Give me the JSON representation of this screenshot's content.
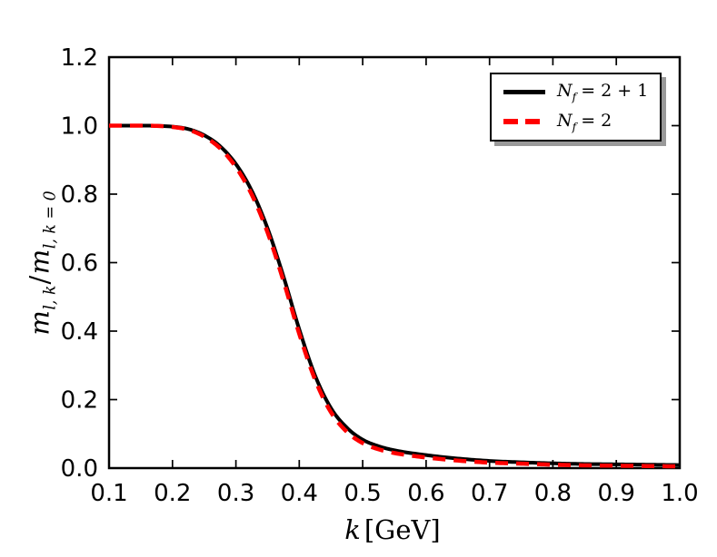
{
  "figure": {
    "background": "#ffffff",
    "axes_color": "#000000",
    "ylabel": {
      "m1": "m",
      "s1": "l, k",
      "slash": "/",
      "m2": "m",
      "s2": "l, k = 0"
    },
    "xlabel": {
      "var": "k",
      "unit": "[GeV]"
    },
    "legend": {
      "shadow_color": "#999999",
      "entries": [
        {
          "base": "N",
          "sub": "f",
          "eq": "= 2 + 1",
          "color": "#000000",
          "line_style": "solid"
        },
        {
          "base": "N",
          "sub": "f",
          "eq": "= 2",
          "color": "#ff0000",
          "line_style": "dashed"
        }
      ]
    }
  },
  "chart_data": {
    "type": "line",
    "title": "",
    "xlabel": "k [GeV]",
    "ylabel": "m_{l,k} / m_{l,k=0}",
    "xlim": [
      0.1,
      1.0
    ],
    "ylim": [
      0.0,
      1.2
    ],
    "grid": false,
    "legend_position": "upper right",
    "tick_direction": "in",
    "x_ticks": [
      0.1,
      0.2,
      0.3,
      0.4,
      0.5,
      0.6,
      0.7,
      0.8,
      0.9,
      1.0
    ],
    "x_tick_labels": [
      "0.1",
      "0.2",
      "0.3",
      "0.4",
      "0.5",
      "0.6",
      "0.7",
      "0.8",
      "0.9",
      "1.0"
    ],
    "y_ticks": [
      0.0,
      0.2,
      0.4,
      0.6,
      0.8,
      1.0,
      1.2
    ],
    "y_tick_labels": [
      "0.0",
      "0.2",
      "0.4",
      "0.6",
      "0.8",
      "1.0",
      "1.2"
    ],
    "x": [
      0.1,
      0.15,
      0.2,
      0.225,
      0.25,
      0.275,
      0.3,
      0.325,
      0.35,
      0.375,
      0.4,
      0.425,
      0.45,
      0.475,
      0.5,
      0.525,
      0.55,
      0.6,
      0.65,
      0.7,
      0.75,
      0.8,
      0.85,
      0.9,
      0.95,
      1.0
    ],
    "series": [
      {
        "name": "N_f = 2+1",
        "color": "#000000",
        "style": "solid",
        "line_width": 4,
        "values": [
          1.0,
          1.0,
          0.997,
          0.99,
          0.972,
          0.94,
          0.888,
          0.81,
          0.7,
          0.56,
          0.405,
          0.27,
          0.175,
          0.118,
          0.083,
          0.064,
          0.052,
          0.038,
          0.028,
          0.021,
          0.017,
          0.014,
          0.012,
          0.011,
          0.01,
          0.009
        ]
      },
      {
        "name": "N_f = 2",
        "color": "#ff0000",
        "style": "dashed",
        "line_width": 4.5,
        "values": [
          1.0,
          1.0,
          0.996,
          0.988,
          0.968,
          0.934,
          0.879,
          0.799,
          0.688,
          0.547,
          0.392,
          0.258,
          0.163,
          0.106,
          0.073,
          0.055,
          0.044,
          0.031,
          0.022,
          0.016,
          0.013,
          0.01,
          0.008,
          0.007,
          0.006,
          0.005
        ]
      }
    ]
  }
}
